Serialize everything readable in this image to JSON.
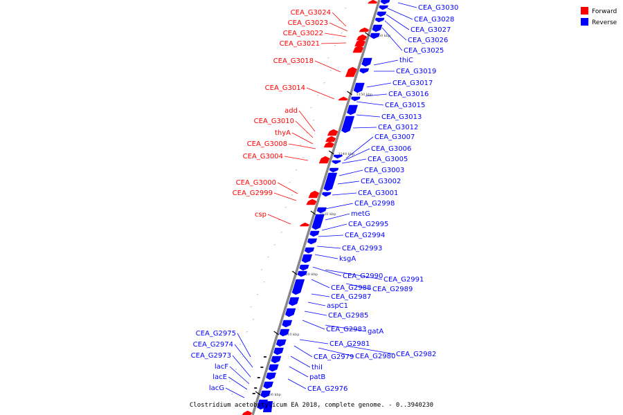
{
  "colors": {
    "forward": "#ff0000",
    "reverse": "#0000ff",
    "backbone": "#888888",
    "leader": "#444444"
  },
  "legend": {
    "forward": "Forward",
    "reverse": "Reverse"
  },
  "caption": "Clostridium acetobutylicum EA 2018, complete genome. - 0..3940230",
  "ticks": [
    "3100 kbp",
    "3110 kbp",
    "3120 kbp",
    "3130 kbp",
    "3140 kbp",
    "3150 kbp",
    "3160 kbp"
  ],
  "forward_genes": [
    "CEA_G3024",
    "CEA_G3023",
    "CEA_G3022",
    "CEA_G3021",
    "CEA_G3018",
    "CEA_G3014",
    "add",
    "CEA_G3010",
    "thyA",
    "CEA_G3008",
    "CEA_G3004",
    "CEA_G3000",
    "CEA_G2999",
    "csp"
  ],
  "reverse_genes": [
    "CEA_G3030",
    "CEA_G3028",
    "CEA_G3027",
    "CEA_G3026",
    "CEA_G3025",
    "thiC",
    "CEA_G3019",
    "CEA_G3017",
    "CEA_G3016",
    "CEA_G3015",
    "CEA_G3013",
    "CEA_G3012",
    "CEA_G3007",
    "CEA_G3006",
    "CEA_G3005",
    "CEA_G3003",
    "CEA_G3002",
    "CEA_G3001",
    "CEA_G2998",
    "metG",
    "CEA_G2995",
    "CEA_G2994",
    "CEA_G2993",
    "ksgA",
    "CEA_G2990",
    "CEA_G2991",
    "CEA_G2988",
    "CEA_G2989",
    "CEA_G2987",
    "aspC1",
    "CEA_G2985",
    "CEA_G2983",
    "gatA",
    "CEA_G2981",
    "CEA_G2979",
    "CEA_G2980",
    "CEA_G2982",
    "thiI",
    "patB",
    "CEA_G2976"
  ],
  "left_reverse_genes": [
    "CEA_G2975",
    "CEA_G2974",
    "CEA_G2973",
    "lacF",
    "lacE",
    "lacG"
  ]
}
